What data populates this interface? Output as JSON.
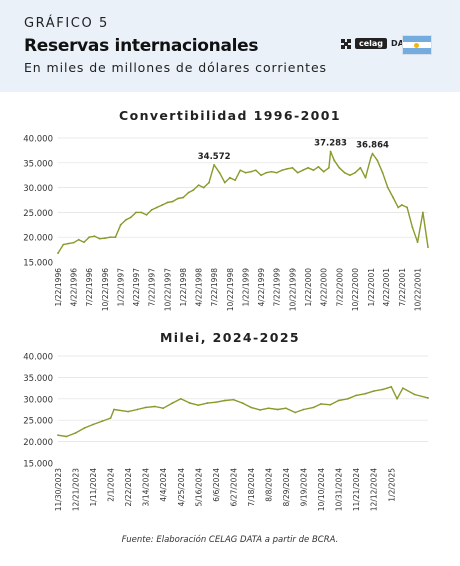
{
  "header": {
    "kicker": "GRÁFICO 5",
    "title": "Reservas internacionales",
    "subtitle": "En miles de millones de dólares corrientes",
    "logo_text": "celag",
    "logo_suffix": "DATA",
    "flag_icon": "argentina-flag-icon"
  },
  "colors": {
    "header_bg": "#eaf1f9",
    "series": "#8a9a2c",
    "grid": "#e0e0e0",
    "text": "#333333"
  },
  "source": "Fuente: Elaboración CELAG DATA a partir de BCRA.",
  "chart_data": [
    {
      "type": "line",
      "title": "Convertibilidad 1996-2001",
      "xlabel": "",
      "ylabel": "",
      "ylim": [
        15000,
        40000
      ],
      "yticks": [
        "15.000",
        "20.000",
        "25.000",
        "30.000",
        "35.000",
        "40.000"
      ],
      "grid": true,
      "x_tick_labels": [
        "1/22/1996",
        "4/22/1996",
        "7/22/1996",
        "10/22/1996",
        "1/22/1997",
        "4/22/1997",
        "7/22/1997",
        "10/22/1997",
        "1/22/1998",
        "4/22/1998",
        "7/22/1998",
        "10/22/1998",
        "1/22/1999",
        "4/22/1999",
        "7/22/1999",
        "10/22/1999",
        "1/22/2000",
        "4/22/2000",
        "7/22/2000",
        "10/22/2000",
        "1/22/2001",
        "4/22/2001",
        "7/22/2001",
        "10/22/2001"
      ],
      "annotations": [
        {
          "text": "34.572",
          "x": "7/22/1998",
          "y": 34572
        },
        {
          "text": "37.283",
          "x": "6/1/2000",
          "y": 37283
        },
        {
          "text": "36.864",
          "x": "2/1/2001",
          "y": 36864
        }
      ],
      "series": [
        {
          "x": [
            "1/22/1996",
            "2/22/1996",
            "3/22/1996",
            "4/22/1996",
            "5/22/1996",
            "6/22/1996",
            "7/22/1996",
            "8/22/1996",
            "9/22/1996",
            "10/22/1996",
            "11/22/1996",
            "12/22/1996",
            "1/22/1997",
            "2/22/1997",
            "3/22/1997",
            "4/22/1997",
            "5/22/1997",
            "6/22/1997",
            "7/22/1997",
            "8/22/1997",
            "9/22/1997",
            "10/22/1997",
            "11/22/1997",
            "12/22/1997",
            "1/22/1998",
            "2/22/1998",
            "3/22/1998",
            "4/22/1998",
            "5/22/1998",
            "6/22/1998",
            "7/22/1998",
            "8/22/1998",
            "9/22/1998",
            "10/22/1998",
            "11/22/1998",
            "12/22/1998",
            "1/22/1999",
            "2/22/1999",
            "3/22/1999",
            "4/22/1999",
            "5/22/1999",
            "6/22/1999",
            "7/22/1999",
            "8/22/1999",
            "9/22/1999",
            "10/22/1999",
            "11/22/1999",
            "12/22/1999",
            "1/22/2000",
            "2/22/2000",
            "3/22/2000",
            "4/22/2000",
            "5/22/2000",
            "6/1/2000",
            "6/22/2000",
            "7/22/2000",
            "8/22/2000",
            "9/22/2000",
            "10/22/2000",
            "11/22/2000",
            "12/22/2000",
            "1/22/2001",
            "2/1/2001",
            "3/1/2001",
            "4/1/2001",
            "5/1/2001",
            "6/1/2001",
            "7/1/2001",
            "7/22/2001",
            "8/22/2001",
            "9/22/2001",
            "10/22/2001",
            "11/22/2001",
            "12/22/2001"
          ],
          "values": [
            16800,
            18500,
            18700,
            18900,
            19500,
            19000,
            20000,
            20200,
            19700,
            19800,
            20000,
            20000,
            22500,
            23500,
            24000,
            25000,
            25000,
            24500,
            25500,
            26000,
            26500,
            27000,
            27200,
            27800,
            28000,
            29000,
            29500,
            30500,
            30000,
            31000,
            34572,
            33000,
            31000,
            32000,
            31500,
            33500,
            33000,
            33200,
            33500,
            32500,
            33000,
            33200,
            33000,
            33500,
            33800,
            34000,
            33000,
            33500,
            34000,
            33500,
            34200,
            33200,
            34000,
            37283,
            35500,
            34000,
            33000,
            32500,
            33000,
            34000,
            32000,
            36000,
            36864,
            35500,
            33000,
            30000,
            28000,
            26000,
            26500,
            26000,
            22000,
            19000,
            25000,
            18000
          ]
        }
      ]
    },
    {
      "type": "line",
      "title": "Milei, 2024-2025",
      "xlabel": "",
      "ylabel": "",
      "ylim": [
        15000,
        40000
      ],
      "yticks": [
        "15.000",
        "20.000",
        "25.000",
        "30.000",
        "35.000",
        "40.000"
      ],
      "grid": true,
      "x_tick_labels": [
        "11/30/2023",
        "12/21/2023",
        "1/11/2024",
        "2/1/2024",
        "2/22/2024",
        "3/14/2024",
        "4/4/2024",
        "4/25/2024",
        "5/16/2024",
        "6/6/2024",
        "6/27/2024",
        "7/18/2024",
        "8/8/2024",
        "8/29/2024",
        "9/19/2024",
        "10/10/2024",
        "10/31/2024",
        "11/21/2024",
        "12/12/2024",
        "1/2/2025"
      ],
      "series": [
        {
          "x": [
            "11/30/2023",
            "12/10/2023",
            "12/21/2023",
            "1/1/2024",
            "1/11/2024",
            "1/22/2024",
            "2/1/2024",
            "2/5/2024",
            "2/22/2024",
            "3/4/2024",
            "3/14/2024",
            "3/25/2024",
            "4/4/2024",
            "4/15/2024",
            "4/25/2024",
            "5/6/2024",
            "5/16/2024",
            "5/27/2024",
            "6/6/2024",
            "6/17/2024",
            "6/27/2024",
            "7/8/2024",
            "7/18/2024",
            "7/29/2024",
            "8/8/2024",
            "8/19/2024",
            "8/29/2024",
            "9/9/2024",
            "9/19/2024",
            "10/1/2024",
            "10/10/2024",
            "10/21/2024",
            "10/31/2024",
            "11/11/2024",
            "11/21/2024",
            "12/2/2024",
            "12/12/2024",
            "12/23/2024",
            "1/2/2025",
            "1/9/2025",
            "1/16/2025",
            "1/30/2025",
            "2/15/2025"
          ],
          "values": [
            21500,
            21200,
            22000,
            23200,
            24000,
            24800,
            25500,
            27500,
            27000,
            27500,
            28000,
            28200,
            27800,
            29000,
            30000,
            29000,
            28500,
            29000,
            29200,
            29600,
            29800,
            29000,
            28000,
            27400,
            27800,
            27500,
            27800,
            26800,
            27500,
            28000,
            28800,
            28600,
            29600,
            30000,
            30800,
            31200,
            31800,
            32200,
            32800,
            30000,
            32500,
            31000,
            30200
          ]
        }
      ]
    }
  ]
}
